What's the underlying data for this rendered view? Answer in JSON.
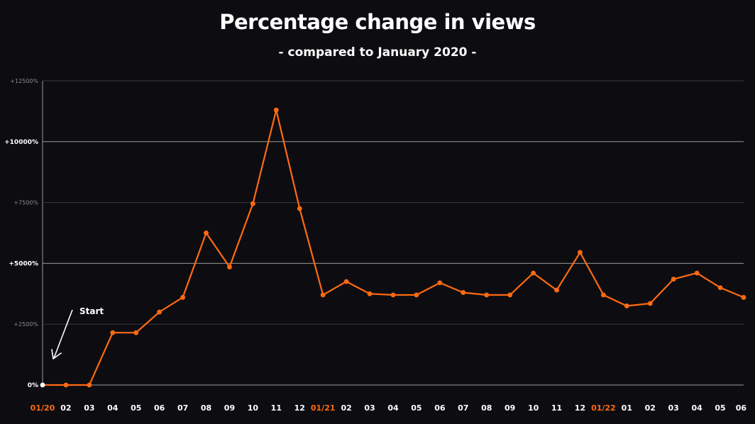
{
  "colors": {
    "background": "#0d0d11",
    "series": "#ff6a13",
    "accent_label": "#ff6a13",
    "text": "#ffffff",
    "grid_major": "#9a9a9a",
    "grid_minor": "#3a3a3e",
    "tick_minor_text": "#8a8a8a",
    "start_marker": "#ffffff"
  },
  "chart_data": {
    "type": "line",
    "title": "Percentage change in views",
    "subtitle": "- compared to January 2020 -",
    "xlabel": "",
    "ylabel": "",
    "ylim": [
      0,
      12500
    ],
    "yticks": [
      {
        "value": 0,
        "label": "0%",
        "major": true
      },
      {
        "value": 2500,
        "label": "+2500%",
        "major": false
      },
      {
        "value": 5000,
        "label": "+5000%",
        "major": true
      },
      {
        "value": 7500,
        "label": "+7500%",
        "major": false
      },
      {
        "value": 10000,
        "label": "+10000%",
        "major": true
      },
      {
        "value": 12500,
        "label": "+12500%",
        "major": false
      }
    ],
    "categories": [
      "01/20",
      "02",
      "03",
      "04",
      "05",
      "06",
      "07",
      "08",
      "09",
      "10",
      "11",
      "12",
      "01/21",
      "02",
      "03",
      "04",
      "05",
      "06",
      "07",
      "08",
      "09",
      "10",
      "11",
      "12",
      "01/22",
      "01",
      "02",
      "03",
      "04",
      "05",
      "06"
    ],
    "highlighted_categories": [
      0,
      12,
      24
    ],
    "series": [
      {
        "values": [
          0,
          0,
          0,
          2150,
          2150,
          3000,
          3600,
          6250,
          4850,
          7450,
          11300,
          7250,
          3700,
          4250,
          3750,
          3700,
          3700,
          4200,
          3800,
          3700,
          3700,
          4600,
          3900,
          5450,
          3700,
          3250,
          3350,
          4350,
          4600,
          4000,
          3600
        ]
      }
    ],
    "grid": true,
    "legend": "none",
    "annotations": [
      {
        "text": "Start",
        "target_index": 0
      }
    ]
  }
}
